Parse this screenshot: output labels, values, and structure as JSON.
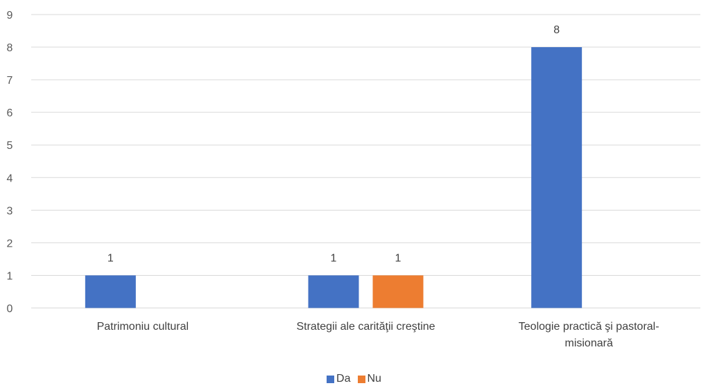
{
  "chart_data": {
    "type": "bar",
    "categories": [
      [
        "Patrimoniu cultural"
      ],
      [
        "Strategii ale carităţii creştine"
      ],
      [
        "Teologie practică şi pastoral-",
        "misionară"
      ]
    ],
    "series": [
      {
        "name": "Da",
        "color": "#4472C4",
        "values": [
          1,
          1,
          8
        ]
      },
      {
        "name": "Nu",
        "color": "#ED7D31",
        "values": [
          null,
          1,
          null
        ]
      }
    ],
    "data_labels": [
      [
        1,
        1,
        8
      ],
      [
        null,
        1,
        null
      ]
    ],
    "ylim": [
      0,
      9
    ],
    "yticks": [
      0,
      1,
      2,
      3,
      4,
      5,
      6,
      7,
      8,
      9
    ],
    "grid": true,
    "legend_position": "bottom"
  }
}
